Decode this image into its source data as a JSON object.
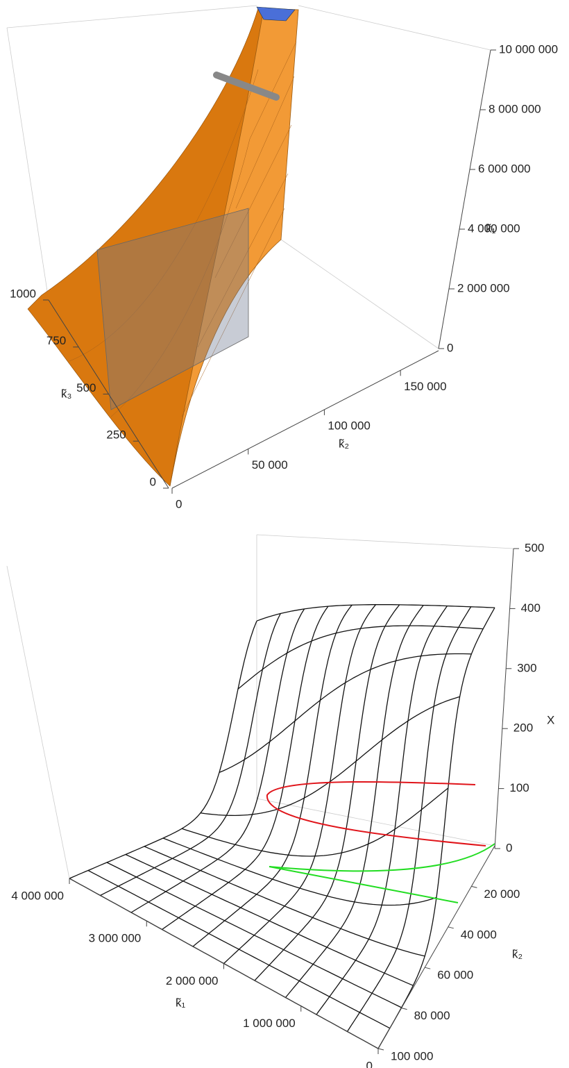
{
  "chart_data": [
    {
      "type": "surface3d",
      "xlabel": "k̃₂",
      "xlim": [
        0,
        175000
      ],
      "xticks": [
        0,
        {
          "value": 50000,
          "label": "50 000"
        },
        {
          "value": 100000,
          "label": "100 000"
        },
        {
          "value": 150000,
          "label": "150 000"
        }
      ],
      "ylabel": "k̃₃",
      "ylim": [
        0,
        1000
      ],
      "yticks": [
        0,
        250,
        500,
        750,
        1000
      ],
      "zlabel": "k̃₁",
      "zlim": [
        0,
        10000000
      ],
      "zticks": [
        0,
        {
          "value": 2000000,
          "label": "2 000 000"
        },
        {
          "value": 4000000,
          "label": "4 000 000"
        },
        {
          "value": 6000000,
          "label": "6 000 000"
        },
        {
          "value": 8000000,
          "label": "8 000 000"
        },
        {
          "value": 10000000,
          "label": "10 000 000"
        }
      ]
    },
    {
      "type": "mesh3d",
      "xlabel": "k̃₁",
      "xlim": [
        0,
        4000000
      ],
      "xticks": [
        0,
        {
          "value": 1000000,
          "label": "1 000 000"
        },
        {
          "value": 2000000,
          "label": "2 000 000"
        },
        {
          "value": 3000000,
          "label": "3 000 000"
        },
        {
          "value": 4000000,
          "label": "4 000 000"
        }
      ],
      "ylabel": "k̃₂",
      "ylim": [
        0,
        100000
      ],
      "yticks": [
        {
          "value": 20000,
          "label": "20 000"
        },
        {
          "value": 40000,
          "label": "40 000"
        },
        {
          "value": 60000,
          "label": "60 000"
        },
        {
          "value": 80000,
          "label": "80 000"
        },
        {
          "value": 100000,
          "label": "100 000"
        }
      ],
      "zlabel": "X",
      "zlim": [
        0,
        500
      ],
      "zticks": [
        0,
        100,
        200,
        300,
        400,
        500
      ]
    }
  ]
}
